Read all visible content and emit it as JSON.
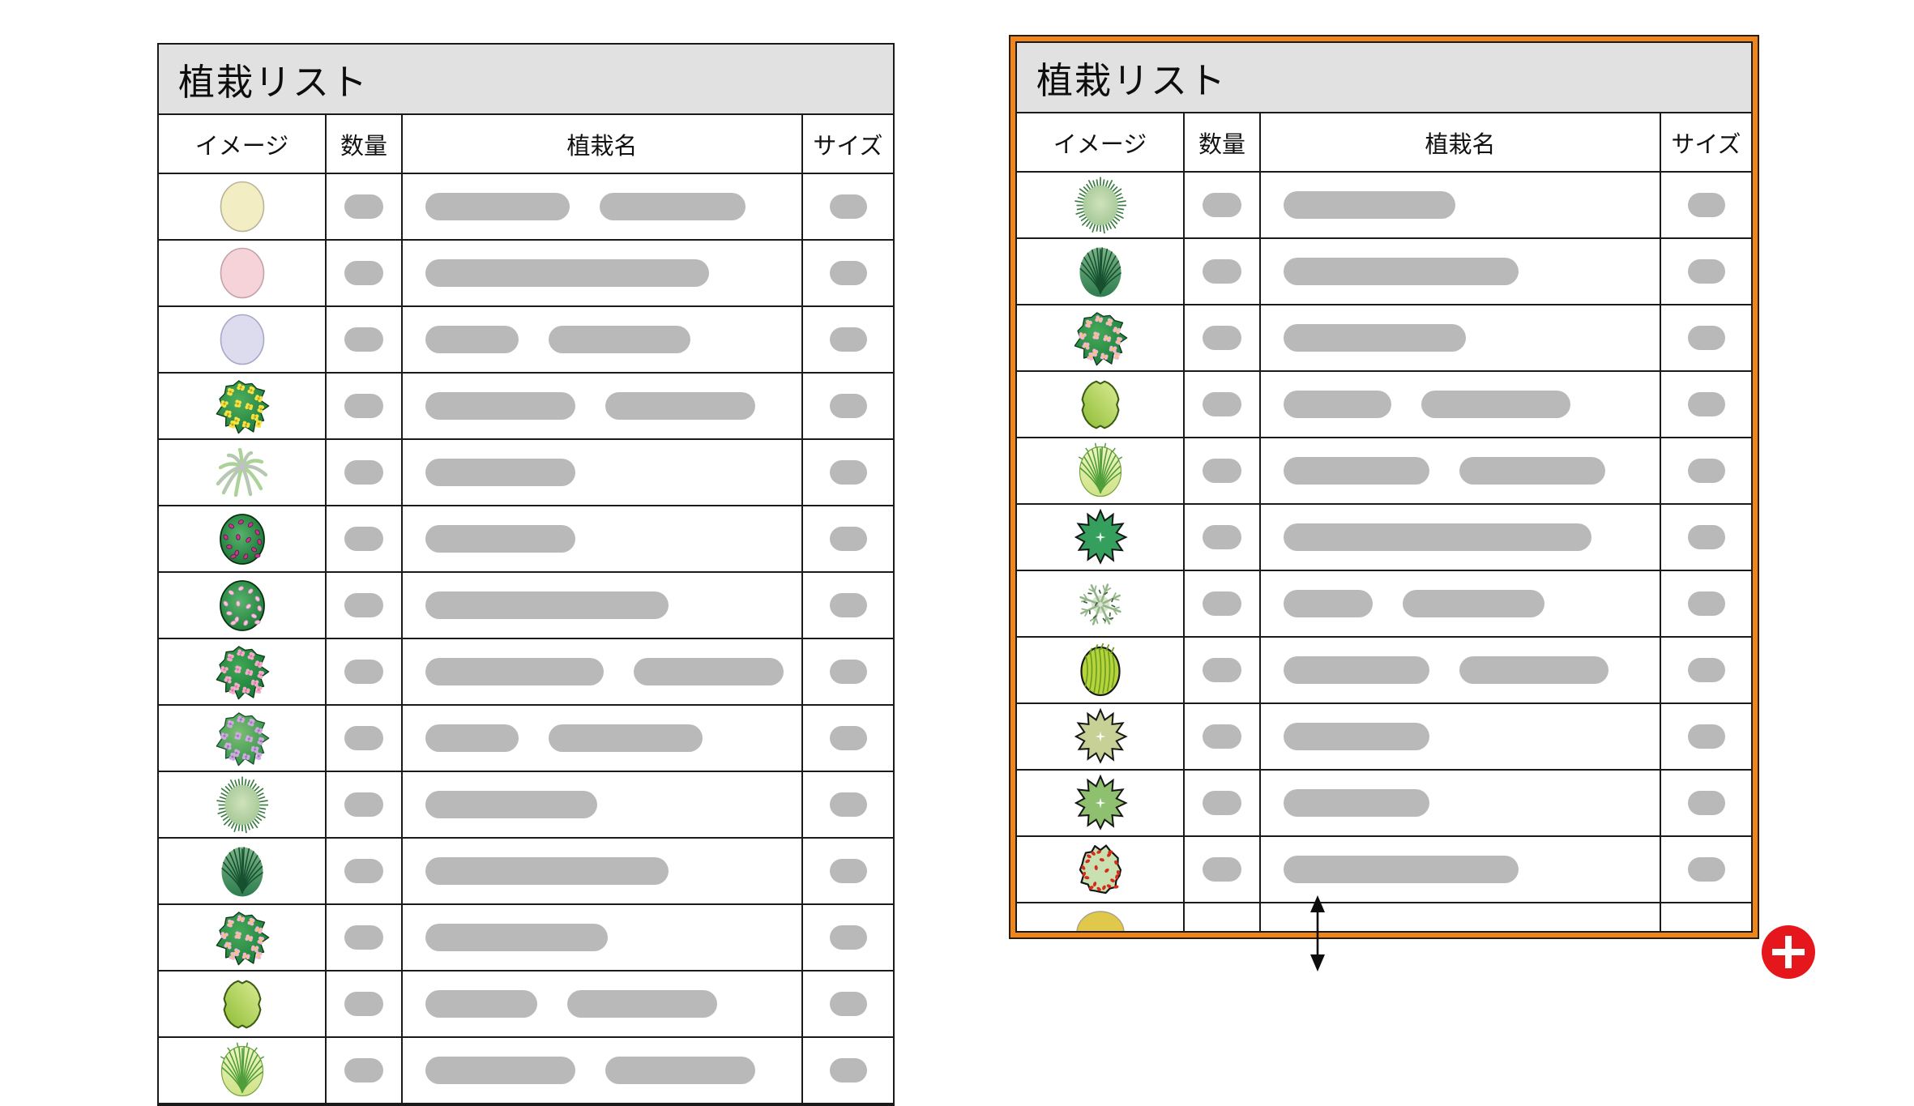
{
  "colors": {
    "selection_border": "#f0861a",
    "grid_line": "#1a1a1a",
    "title_bar_bg": "#e1e1e1",
    "placeholder_pill": "#b9b9b9",
    "add_button": "#e5171d",
    "resize_arrow": "#0d0d0d"
  },
  "tables": {
    "left": {
      "title": "植栽リスト",
      "columns": [
        "イメージ",
        "数量",
        "植栽名",
        "サイズ"
      ],
      "selected": false,
      "rows": [
        {
          "icon": "circle-pale-yellow",
          "name_pills": [
            178,
            180
          ]
        },
        {
          "icon": "circle-pink",
          "name_pills": [
            350
          ]
        },
        {
          "icon": "circle-lavender",
          "name_pills": [
            115,
            175
          ]
        },
        {
          "icon": "bush-yellow-flowers",
          "name_pills": [
            185,
            185
          ]
        },
        {
          "icon": "palm-plant",
          "name_pills": [
            185
          ]
        },
        {
          "icon": "dotted-circle-magenta",
          "name_pills": [
            185
          ]
        },
        {
          "icon": "dotted-circle-pink",
          "name_pills": [
            300
          ]
        },
        {
          "icon": "bush-pink-flowers",
          "name_pills": [
            220,
            185
          ]
        },
        {
          "icon": "bush-violet-flowers",
          "name_pills": [
            115,
            190
          ]
        },
        {
          "icon": "spiky-grass-circle",
          "name_pills": [
            212
          ]
        },
        {
          "icon": "mound-plant",
          "name_pills": [
            300
          ]
        },
        {
          "icon": "bush-pink-yellow-flowers",
          "name_pills": [
            225
          ]
        },
        {
          "icon": "smooth-blob-shrub",
          "name_pills": [
            138,
            185
          ]
        },
        {
          "icon": "light-palm-grass",
          "name_pills": [
            185,
            185
          ]
        }
      ]
    },
    "right": {
      "title": "植栽リスト",
      "columns": [
        "イメージ",
        "数量",
        "植栽名",
        "サイズ"
      ],
      "selected": true,
      "rows": [
        {
          "icon": "spiky-grass-circle",
          "name_pills": [
            212
          ]
        },
        {
          "icon": "mound-plant",
          "name_pills": [
            290
          ]
        },
        {
          "icon": "bush-pink-yellow-flowers",
          "name_pills": [
            225
          ]
        },
        {
          "icon": "smooth-blob-shrub",
          "name_pills": [
            133,
            184
          ]
        },
        {
          "icon": "light-palm-grass",
          "name_pills": [
            180,
            180
          ]
        },
        {
          "icon": "star-shrub-green",
          "name_pills": [
            380
          ]
        },
        {
          "icon": "snowflake-plant",
          "name_pills": [
            110,
            175
          ]
        },
        {
          "icon": "grass-oval",
          "name_pills": [
            180,
            184
          ]
        },
        {
          "icon": "star-shrub-pale",
          "name_pills": [
            180
          ]
        },
        {
          "icon": "star-shrub-light",
          "name_pills": [
            180
          ]
        },
        {
          "icon": "red-dotted-shrub",
          "name_pills": [
            290
          ]
        }
      ],
      "partial_row": {
        "icon": "mound-yellow"
      }
    }
  },
  "icon_defs": {
    "circle-pale-yellow": {
      "kind": "circle",
      "fill": "#f2edc2",
      "stroke": "#b9b49a"
    },
    "circle-pink": {
      "kind": "circle",
      "fill": "#f6d3d9",
      "stroke": "#c5a2ab"
    },
    "circle-lavender": {
      "kind": "circle",
      "fill": "#dddcee",
      "stroke": "#a9a8c8"
    },
    "bush-yellow-flowers": {
      "kind": "flowerBush",
      "light": "#4fae5c",
      "dark": "#1b7c3d",
      "edge": "#0b3a18",
      "flower": "#f6e243",
      "center": "#caa616"
    },
    "palm-plant": {
      "kind": "palmTop",
      "leaf": "#abd297",
      "stem": "#c9b8dc"
    },
    "dotted-circle-magenta": {
      "kind": "dottedCircle",
      "light": "#58b46b",
      "dark": "#177434",
      "dot": "#c23b8b",
      "dotEdge": "#63104a"
    },
    "dotted-circle-pink": {
      "kind": "dottedCircle",
      "light": "#58b46b",
      "dark": "#1d7c3a",
      "dot": "#f3c8dc",
      "dotEdge": "#d387b3"
    },
    "bush-pink-flowers": {
      "kind": "flowerBush",
      "light": "#3fa855",
      "dark": "#157534",
      "edge": "#0b3a18",
      "flower": "#f2abcb",
      "center": "#e27ba8"
    },
    "bush-violet-flowers": {
      "kind": "flowerBush",
      "light": "#7cbf73",
      "dark": "#2f8f4a",
      "edge": "#19512a",
      "flower": "#cfa9e0",
      "center": "#a175c2"
    },
    "spiky-grass-circle": {
      "kind": "spikyCircle",
      "light": "#cfe2bb",
      "mid": "#a3c794",
      "spike": "#3c7d43"
    },
    "mound-plant": {
      "kind": "fountain",
      "top": "#7cb389",
      "bottom": "#2e7d4e",
      "line": "#17502f"
    },
    "bush-pink-yellow-flowers": {
      "kind": "flowerBush",
      "light": "#46aa58",
      "dark": "#1a7c3c",
      "edge": "#0b3a18",
      "flower": "#f3b5cf",
      "center": "#f0d041"
    },
    "smooth-blob-shrub": {
      "kind": "smoothBlob",
      "light": "#dcec95",
      "dark": "#8cbc33",
      "edge": "#3b5c12"
    },
    "light-palm-grass": {
      "kind": "fountain",
      "top": "#eef4c0",
      "bottom": "#cfe387",
      "line": "#4f9e3b",
      "outline": "#79a33f",
      "hairs": true
    },
    "star-shrub-green": {
      "kind": "star",
      "fill": "#35a05e"
    },
    "snowflake-plant": {
      "kind": "snowflake",
      "center": "#d8e4cd",
      "branch": "#94b589",
      "fleck": "#3e5e3e"
    },
    "grass-oval": {
      "kind": "grassOval",
      "fill": "#b6d53d",
      "blade": "#6d9d20"
    },
    "star-shrub-pale": {
      "kind": "star",
      "fill": "#c7d095"
    },
    "star-shrub-light": {
      "kind": "star",
      "fill": "#8fc070"
    },
    "red-dotted-shrub": {
      "kind": "dottedBlob",
      "fill": "#c9e0b1",
      "dot": "#d52b1a"
    },
    "mound-yellow": {
      "kind": "halfMound",
      "fill": "#e0c84a",
      "stroke": "#a9a18a"
    }
  },
  "controls": {
    "add_button": {
      "glyph": "+",
      "color": "#e5171d"
    },
    "resize_arrow": {
      "direction": "vertical",
      "color": "#0d0d0d"
    }
  }
}
